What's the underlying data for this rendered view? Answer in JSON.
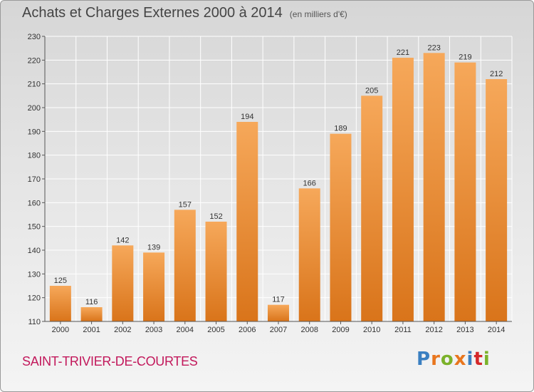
{
  "header": {
    "title": "Achats et Charges Externes 2000 à 2014",
    "unit": "(en milliers d'€)"
  },
  "footer": {
    "commune": "SAINT-TRIVIER-DE-COURTES",
    "logo_text": "Proxiti",
    "logo_colors": [
      "#3a7fc1",
      "#e8761e",
      "#7bb22a",
      "#e8761e",
      "#3a7fc1",
      "#d4282a",
      "#7bb22a"
    ]
  },
  "colors": {
    "bar_light": "#f6a85a",
    "bar_dark": "#d9741a",
    "grid": "#ffffff",
    "axis": "#555555",
    "commune": "#c2185b"
  },
  "chart_data": {
    "type": "bar",
    "title": "Achats et Charges Externes 2000 à 2014",
    "subtitle": "(en milliers d'€)",
    "categories": [
      "2000",
      "2001",
      "2002",
      "2003",
      "2004",
      "2005",
      "2006",
      "2007",
      "2008",
      "2009",
      "2010",
      "2011",
      "2012",
      "2013",
      "2014"
    ],
    "values": [
      125,
      116,
      142,
      139,
      157,
      152,
      194,
      117,
      166,
      189,
      205,
      221,
      223,
      219,
      212
    ],
    "ylim": [
      110,
      230
    ],
    "yticks": [
      110,
      120,
      130,
      140,
      150,
      160,
      170,
      180,
      190,
      200,
      210,
      220,
      230
    ],
    "grid": true,
    "legend": "none"
  }
}
